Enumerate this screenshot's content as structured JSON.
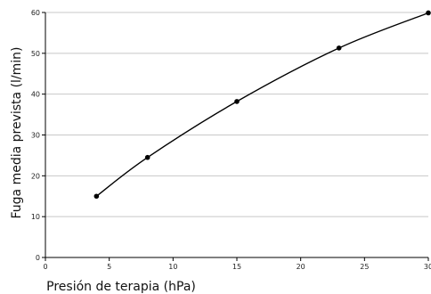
{
  "chart_data": {
    "type": "line",
    "title": "",
    "xlabel": "Presión de terapia (hPa)",
    "ylabel": "Fuga media prevista (l/min)",
    "xlim": [
      0,
      30
    ],
    "ylim": [
      0,
      60
    ],
    "x_ticks": [
      0,
      5,
      10,
      15,
      20,
      25,
      30
    ],
    "y_ticks": [
      0,
      10,
      20,
      30,
      40,
      50,
      60
    ],
    "grid": "horizontal",
    "series": [
      {
        "x": [
          4,
          8,
          15,
          23,
          30
        ],
        "y": [
          15,
          24.5,
          38.2,
          51.3,
          59.9
        ],
        "color": "#000000",
        "markers": true
      }
    ]
  }
}
